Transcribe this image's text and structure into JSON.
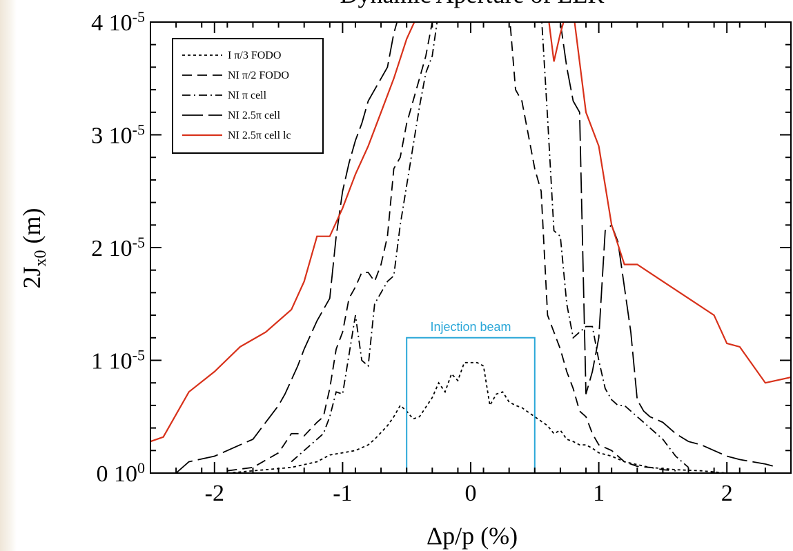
{
  "chart_data": {
    "type": "line",
    "title": "Dynamic Aperture of LER",
    "xlabel": "Δp/p (%)",
    "ylabel": {
      "main": "2J",
      "sub": "x0",
      "tail": " (m)"
    },
    "xlim": [
      -2.5,
      2.5
    ],
    "ylim": [
      0,
      4e-05
    ],
    "xticks": [
      {
        "value": -2,
        "label": "-2"
      },
      {
        "value": -1,
        "label": "-1"
      },
      {
        "value": 0,
        "label": "0"
      },
      {
        "value": 1,
        "label": "1"
      },
      {
        "value": 2,
        "label": "2"
      }
    ],
    "yticks": [
      {
        "value": 0,
        "mant": "0 10",
        "exp": "0"
      },
      {
        "value": 1e-05,
        "mant": "1 10",
        "exp": "-5"
      },
      {
        "value": 2e-05,
        "mant": "2 10",
        "exp": "-5"
      },
      {
        "value": 3e-05,
        "mant": "3 10",
        "exp": "-5"
      },
      {
        "value": 4e-05,
        "mant": "4 10",
        "exp": "-5"
      }
    ],
    "grid": false,
    "legend_position": "top-left",
    "series": [
      {
        "name": "I π/3 FODO",
        "color": "#000000",
        "dash": "4,4",
        "x": [
          -1.9,
          -1.6,
          -1.4,
          -1.2,
          -1.1,
          -1.0,
          -0.9,
          -0.8,
          -0.75,
          -0.65,
          -0.6,
          -0.55,
          -0.5,
          -0.45,
          -0.4,
          -0.3,
          -0.25,
          -0.2,
          -0.15,
          -0.1,
          -0.05,
          0.0,
          0.05,
          0.1,
          0.15,
          0.2,
          0.25,
          0.3,
          0.35,
          0.4,
          0.5,
          0.6,
          0.65,
          0.7,
          0.75,
          0.8,
          0.85,
          0.9,
          0.95,
          1.0,
          1.1,
          1.2,
          1.4,
          1.6,
          1.8,
          1.9,
          2.0
        ],
        "y": [
          0,
          3e-07,
          5e-07,
          1e-06,
          1.6e-06,
          1.8e-06,
          2e-06,
          2.5e-06,
          3e-06,
          4.2e-06,
          5e-06,
          6e-06,
          5.5e-06,
          4.8e-06,
          5e-06,
          6.7e-06,
          8e-06,
          7.2e-06,
          8.8e-06,
          8.2e-06,
          9.8e-06,
          9.8e-06,
          9.8e-06,
          9.5e-06,
          6e-06,
          7e-06,
          7.2e-06,
          6.3e-06,
          6e-06,
          5.8e-06,
          5e-06,
          4.2e-06,
          3.5e-06,
          3.8e-06,
          3e-06,
          2.8e-06,
          2.5e-06,
          2.5e-06,
          2.2e-06,
          1.8e-06,
          1.5e-06,
          1e-06,
          5e-07,
          3e-07,
          2e-07,
          1e-07,
          0
        ]
      },
      {
        "name": "NI π/2 FODO",
        "color": "#000000",
        "dash": "14,8",
        "x": [
          -1.9,
          -1.7,
          -1.5,
          -1.4,
          -1.35,
          -1.3,
          -1.2,
          -1.15,
          -1.1,
          -1.05,
          -1.0,
          -0.95,
          -0.9,
          -0.85,
          -0.8,
          -0.75,
          -0.7,
          -0.65,
          -0.6,
          -0.55,
          -0.5,
          -0.45,
          -0.4,
          -0.35,
          -0.3,
          -0.25,
          -0.2,
          -0.15,
          0.3,
          0.35,
          0.4,
          0.45,
          0.5,
          0.55,
          0.6,
          0.65,
          0.7,
          0.75,
          0.8,
          0.85,
          0.9,
          0.95,
          1.0,
          1.1,
          1.2,
          1.3,
          1.4,
          1.5,
          1.6
        ],
        "y": [
          2e-07,
          5e-07,
          1.8e-06,
          3.5e-06,
          3.5e-06,
          3.3e-06,
          4.5e-06,
          5e-06,
          7.5e-06,
          1.1e-05,
          1.25e-05,
          1.55e-05,
          1.65e-05,
          1.78e-05,
          1.78e-05,
          1.7e-05,
          1.85e-05,
          2.1e-05,
          2.7e-05,
          2.8e-05,
          3.1e-05,
          3.3e-05,
          3.5e-05,
          3.7e-05,
          4e-05,
          4.1e-05,
          4.1e-05,
          4.1e-05,
          4.1e-05,
          3.4e-05,
          3.3e-05,
          3e-05,
          2.7e-05,
          2.5e-05,
          1.4e-05,
          1.25e-05,
          1.1e-05,
          9e-06,
          7.5e-06,
          5.5e-06,
          5e-06,
          3.5e-06,
          2.5e-06,
          2e-06,
          1e-06,
          6e-07,
          5e-07,
          3e-07,
          2e-07
        ]
      },
      {
        "name": "NI π cell",
        "color": "#000000",
        "dash": "12,5,2,5",
        "x": [
          -1.4,
          -1.3,
          -1.2,
          -1.15,
          -1.1,
          -1.05,
          -1.0,
          -0.95,
          -0.9,
          -0.85,
          -0.8,
          -0.75,
          -0.7,
          -0.65,
          -0.6,
          -0.55,
          -0.5,
          -0.45,
          -0.4,
          -0.35,
          -0.3,
          -0.25,
          0.55,
          0.6,
          0.65,
          0.7,
          0.75,
          0.8,
          0.85,
          0.9,
          0.95,
          1.0,
          1.05,
          1.1,
          1.15,
          1.2,
          1.25,
          1.3,
          1.35,
          1.4,
          1.5,
          1.6,
          1.7
        ],
        "y": [
          1e-06,
          2e-06,
          3e-06,
          3.5e-06,
          5e-06,
          7.2e-06,
          7e-06,
          1.05e-05,
          1.4e-05,
          1e-05,
          9.5e-06,
          1.5e-05,
          1.6e-05,
          1.7e-05,
          1.75e-05,
          2.2e-05,
          2.55e-05,
          2.9e-05,
          3.25e-05,
          3.55e-05,
          3.7e-05,
          4.1e-05,
          4.1e-05,
          3.15e-05,
          2.15e-05,
          2.1e-05,
          1.5e-05,
          1.2e-05,
          1.25e-05,
          1.3e-05,
          1.3e-05,
          1e-05,
          7.5e-06,
          6.5e-06,
          6e-06,
          6e-06,
          5.5e-06,
          5e-06,
          4.5e-06,
          4e-06,
          3e-06,
          1.5e-06,
          5e-07
        ]
      },
      {
        "name": "NI 2.5π cell",
        "color": "#000000",
        "dash": "30,8",
        "x": [
          -2.3,
          -2.2,
          -2.0,
          -1.9,
          -1.8,
          -1.7,
          -1.6,
          -1.5,
          -1.45,
          -1.35,
          -1.3,
          -1.2,
          -1.1,
          -1.05,
          -1.0,
          -0.95,
          -0.9,
          -0.85,
          -0.8,
          -0.75,
          -0.7,
          -0.65,
          -0.6,
          -0.55,
          -0.5,
          0.65,
          0.7,
          0.75,
          0.8,
          0.85,
          0.9,
          0.95,
          1.0,
          1.05,
          1.1,
          1.15,
          1.2,
          1.25,
          1.3,
          1.35,
          1.4,
          1.5,
          1.6,
          1.7,
          1.8,
          1.9,
          2.0,
          2.1,
          2.3,
          2.4
        ],
        "y": [
          0,
          1e-06,
          1.5e-06,
          2e-06,
          2.5e-06,
          3e-06,
          4.5e-06,
          6e-06,
          7e-06,
          9.5e-06,
          1.1e-05,
          1.35e-05,
          1.55e-05,
          2.1e-05,
          2.5e-05,
          2.75e-05,
          2.95e-05,
          3.1e-05,
          3.3e-05,
          3.4e-05,
          3.5e-05,
          3.6e-05,
          3.9e-05,
          4.1e-05,
          4.1e-05,
          4.1e-05,
          4e-05,
          3.6e-05,
          3.3e-05,
          3.2e-05,
          7e-06,
          9e-06,
          1.2e-05,
          2.15e-05,
          2.2e-05,
          2.05e-05,
          1.65e-05,
          1.25e-05,
          6.5e-06,
          5.5e-06,
          5e-06,
          4.5e-06,
          3.5e-06,
          2.8e-06,
          2.5e-06,
          2e-06,
          1.5e-06,
          1.2e-06,
          8e-07,
          5e-07
        ]
      },
      {
        "name": "NI 2.5π cell lc",
        "color": "#d8311a",
        "dash": "",
        "x": [
          -2.5,
          -2.4,
          -2.2,
          -2.0,
          -1.8,
          -1.6,
          -1.4,
          -1.3,
          -1.2,
          -1.1,
          -1.0,
          -0.9,
          -0.8,
          -0.7,
          -0.6,
          -0.5,
          -0.4,
          0.6,
          0.65,
          0.7,
          0.75,
          0.8,
          0.9,
          1.0,
          1.05,
          1.1,
          1.2,
          1.3,
          1.5,
          1.7,
          1.9,
          2.0,
          2.1,
          2.3,
          2.5
        ],
        "y": [
          2.8e-06,
          3.2e-06,
          7.2e-06,
          9e-06,
          1.12e-05,
          1.25e-05,
          1.45e-05,
          1.7e-05,
          2.1e-05,
          2.1e-05,
          2.35e-05,
          2.65e-05,
          2.9e-05,
          3.2e-05,
          3.5e-05,
          3.85e-05,
          4.1e-05,
          4.1e-05,
          3.65e-05,
          3.9e-05,
          4.1e-05,
          4.1e-05,
          3.2e-05,
          2.9e-05,
          2.55e-05,
          2.2e-05,
          1.85e-05,
          1.85e-05,
          1.7e-05,
          1.55e-05,
          1.4e-05,
          1.15e-05,
          1.12e-05,
          8e-06,
          8.5e-06
        ]
      }
    ],
    "annotations": [
      {
        "label": "Injection beam",
        "color": "#2aa7d8",
        "x_from": -0.5,
        "x_to": 0.5,
        "y_top": 1.2e-05
      }
    ]
  }
}
